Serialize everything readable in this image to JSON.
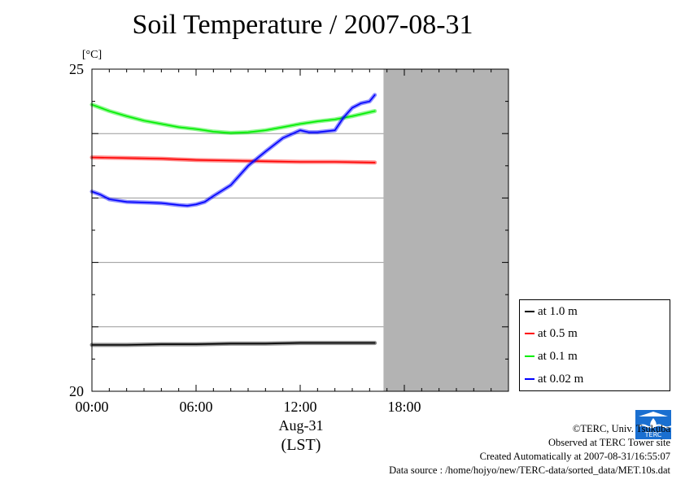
{
  "title": "Soil Temperature / 2007-08-31",
  "chart_data": {
    "type": "line",
    "title": "Soil Temperature / 2007-08-31",
    "ylabel": "[°C]",
    "ylim": [
      20,
      25
    ],
    "yticks": [
      "25",
      "20"
    ],
    "xlim": [
      0,
      24
    ],
    "xticks": [
      {
        "value": 0,
        "label": "00:00"
      },
      {
        "value": 6,
        "label": "06:00"
      },
      {
        "value": 12,
        "label": "12:00"
      },
      {
        "value": 18,
        "label": "18:00"
      }
    ],
    "xlabel_date": "Aug-31",
    "xlabel_unit": "(LST)",
    "grid": true,
    "no_data_from_hour": 16.8,
    "legend_position": "right",
    "series": [
      {
        "name": "at 1.0 m",
        "color": "#000000",
        "x": [
          0,
          2,
          4,
          6,
          8,
          10,
          12,
          14,
          16.3
        ],
        "y": [
          20.72,
          20.72,
          20.73,
          20.73,
          20.74,
          20.74,
          20.75,
          20.75,
          20.75
        ]
      },
      {
        "name": "at 0.5 m",
        "color": "#ff0000",
        "x": [
          0,
          2,
          4,
          6,
          8,
          10,
          12,
          14,
          16.3
        ],
        "y": [
          23.63,
          23.62,
          23.61,
          23.59,
          23.58,
          23.57,
          23.56,
          23.56,
          23.55
        ]
      },
      {
        "name": "at 0.1 m",
        "color": "#00ee00",
        "x": [
          0,
          1,
          2,
          3,
          4,
          5,
          6,
          7,
          8,
          9,
          10,
          11,
          12,
          13,
          14,
          15,
          16.3
        ],
        "y": [
          24.45,
          24.35,
          24.27,
          24.2,
          24.15,
          24.1,
          24.07,
          24.03,
          24.01,
          24.02,
          24.05,
          24.1,
          24.15,
          24.19,
          24.22,
          24.27,
          24.35
        ]
      },
      {
        "name": "at 0.02 m",
        "color": "#0000ff",
        "x": [
          0,
          0.5,
          1,
          2,
          3,
          4,
          5,
          5.5,
          6,
          6.5,
          7,
          8,
          9,
          10,
          11,
          12,
          12.5,
          13,
          14,
          14.5,
          15,
          15.5,
          16,
          16.3
        ],
        "y": [
          23.1,
          23.05,
          22.98,
          22.94,
          22.93,
          22.92,
          22.89,
          22.88,
          22.9,
          22.94,
          23.03,
          23.2,
          23.5,
          23.72,
          23.93,
          24.05,
          24.02,
          24.02,
          24.05,
          24.25,
          24.4,
          24.47,
          24.5,
          24.6
        ]
      }
    ]
  },
  "credits": {
    "line1": "©TERC, Univ. Tsukuba",
    "line2": "Observed at TERC Tower site",
    "line3": "Created Automatically at 2007-08-31/16:55:07",
    "line4": "Data source : /home/hojyo/new/TERC-data/sorted_data/MET.10s.dat"
  },
  "logo": {
    "text": "TERC"
  }
}
